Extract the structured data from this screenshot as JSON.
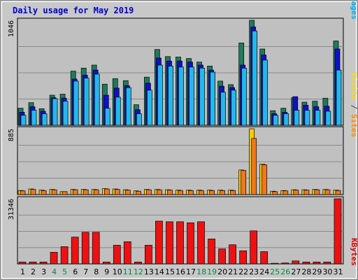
{
  "chart_data": {
    "type": "bar",
    "title": "Daily usage for May 2019",
    "days": [
      "1",
      "2",
      "3",
      "4",
      "5",
      "6",
      "7",
      "8",
      "9",
      "10",
      "11",
      "12",
      "13",
      "14",
      "15",
      "16",
      "17",
      "18",
      "19",
      "20",
      "21",
      "22",
      "23",
      "24",
      "25",
      "26",
      "27",
      "28",
      "29",
      "30",
      "31"
    ],
    "weekend_days": [
      "4",
      "5",
      "11",
      "12",
      "18",
      "19",
      "25",
      "26"
    ],
    "panels": [
      {
        "id": "hits",
        "max_label": "1046",
        "max": 1046,
        "legend": [
          {
            "text": "Pages",
            "color": "#00aaee"
          },
          {
            "text": " / ",
            "color": "#444444"
          },
          {
            "text": "Files",
            "color": "#0000cc"
          },
          {
            "text": " / ",
            "color": "#444444"
          },
          {
            "text": "Hits",
            "color": "#008844"
          }
        ],
        "series": [
          {
            "name": "Hits",
            "color": "#1f7a5c",
            "values": [
              170,
              225,
              165,
              300,
              310,
              540,
              570,
              600,
              410,
              465,
              445,
              205,
              480,
              755,
              685,
              680,
              665,
              630,
              590,
              440,
              405,
              820,
              1046,
              760,
              145,
              170,
              275,
              230,
              240,
              270,
              840
            ]
          },
          {
            "name": "Files",
            "color": "#1010c8",
            "values": [
              130,
              185,
              140,
              275,
              270,
              460,
              500,
              550,
              300,
              370,
              395,
              155,
              420,
              670,
              640,
              640,
              630,
              600,
              550,
              390,
              375,
              600,
              980,
              700,
              115,
              130,
              285,
              200,
              185,
              190,
              760
            ]
          },
          {
            "name": "Pages",
            "color": "#22b8ee",
            "values": [
              100,
              150,
              115,
              265,
              240,
              440,
              470,
              510,
              170,
              280,
              375,
              115,
              350,
              600,
              590,
              580,
              580,
              570,
              530,
              330,
              350,
              570,
              940,
              650,
              100,
              115,
              150,
              150,
              150,
              140,
              550
            ]
          }
        ]
      },
      {
        "id": "visits",
        "max_label": "885",
        "max": 885,
        "legend": [
          {
            "text": "Sites",
            "color": "#ff8800"
          },
          {
            "text": " / ",
            "color": "#444444"
          },
          {
            "text": "Visits",
            "color": "#ffdd00"
          }
        ],
        "series": [
          {
            "name": "Visits",
            "color": "#ffcc00",
            "values": [
              55,
              75,
              60,
              70,
              40,
              70,
              70,
              70,
              80,
              75,
              65,
              50,
              70,
              70,
              65,
              60,
              60,
              60,
              60,
              60,
              60,
              330,
              885,
              410,
              45,
              55,
              65,
              65,
              70,
              70,
              60
            ]
          },
          {
            "name": "Sites",
            "color": "#ee7722",
            "values": [
              50,
              70,
              55,
              65,
              40,
              65,
              65,
              65,
              75,
              70,
              60,
              45,
              65,
              65,
              60,
              55,
              55,
              55,
              55,
              55,
              55,
              325,
              755,
              400,
              40,
              50,
              60,
              60,
              65,
              65,
              55
            ]
          }
        ]
      },
      {
        "id": "kbytes",
        "max_label": "31346",
        "max": 31346,
        "legend": [
          {
            "text": "KBytes",
            "color": "#dd0000"
          }
        ],
        "series": [
          {
            "name": "KBytes",
            "color": "#ee1111",
            "values": [
              900,
              900,
              900,
              5600,
              8300,
              12900,
              15200,
              15200,
              900,
              9000,
              10700,
              900,
              9000,
              20600,
              20300,
              20300,
              19800,
              20300,
              12000,
              7200,
              9200,
              6300,
              15900,
              5900,
              300,
              450,
              1400,
              900,
              900,
              900,
              31346
            ]
          }
        ]
      }
    ]
  }
}
